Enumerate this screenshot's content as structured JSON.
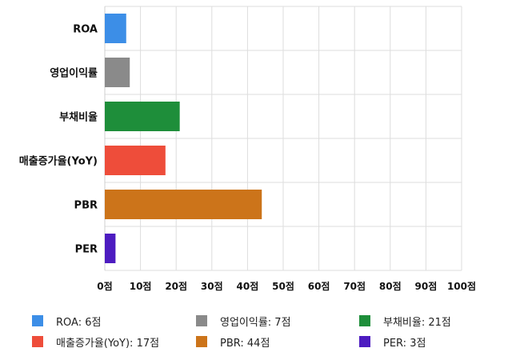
{
  "chart_data": {
    "type": "bar",
    "orientation": "horizontal",
    "categories": [
      "ROA",
      "영업이익률",
      "부채비율",
      "매출증가율(YoY)",
      "PBR",
      "PER"
    ],
    "values": [
      6,
      7,
      21,
      17,
      44,
      3
    ],
    "colors": [
      "#3c8ee7",
      "#8a8a8a",
      "#1e8e3a",
      "#ee4d3a",
      "#cc741a",
      "#4d1cc0"
    ],
    "xlim": [
      0,
      100
    ],
    "x_ticks": [
      0,
      10,
      20,
      30,
      40,
      50,
      60,
      70,
      80,
      90,
      100
    ],
    "x_tick_labels": [
      "0점",
      "10점",
      "20점",
      "30점",
      "40점",
      "50점",
      "60점",
      "70점",
      "80점",
      "90점",
      "100점"
    ],
    "grid": true,
    "legend_position": "bottom",
    "legend": [
      {
        "label": "ROA: 6점",
        "color": "#3c8ee7"
      },
      {
        "label": "영업이익률: 7점",
        "color": "#8a8a8a"
      },
      {
        "label": "부채비율: 21점",
        "color": "#1e8e3a"
      },
      {
        "label": "매출증가율(YoY): 17점",
        "color": "#ee4d3a"
      },
      {
        "label": "PBR: 44점",
        "color": "#cc741a"
      },
      {
        "label": "PER: 3점",
        "color": "#4d1cc0"
      }
    ]
  }
}
